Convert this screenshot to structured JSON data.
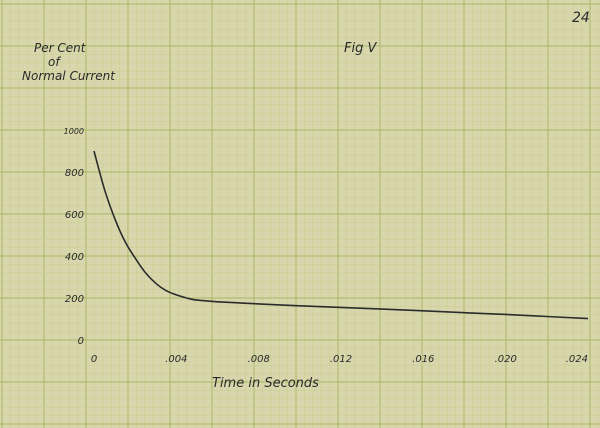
{
  "page": {
    "page_number": "24",
    "figure_label": "Fig V"
  },
  "chart_data": {
    "type": "line",
    "title": "Fig V",
    "ylabel_lines": [
      "Per Cent",
      "of",
      "Normal Current"
    ],
    "xlabel": "Time in Seconds",
    "x_ticks": [
      {
        "value": 0,
        "label": "0"
      },
      {
        "value": 0.004,
        "label": ".004"
      },
      {
        "value": 0.008,
        "label": ".008"
      },
      {
        "value": 0.012,
        "label": ".012"
      },
      {
        "value": 0.016,
        "label": ".016"
      },
      {
        "value": 0.02,
        "label": ".020"
      },
      {
        "value": 0.024,
        "label": ".024"
      }
    ],
    "y_ticks": [
      {
        "value": 0,
        "label": "0"
      },
      {
        "value": 200,
        "label": "200"
      },
      {
        "value": 400,
        "label": "400"
      },
      {
        "value": 600,
        "label": "600"
      },
      {
        "value": 800,
        "label": "800"
      },
      {
        "value": 1000,
        "label": "1000"
      }
    ],
    "xlim": [
      0,
      0.024
    ],
    "ylim": [
      0,
      1000
    ],
    "grid": true,
    "series": [
      {
        "x": [
          0,
          0.0005,
          0.001,
          0.0015,
          0.002,
          0.0025,
          0.003,
          0.0035,
          0.004,
          0.0045,
          0.005,
          0.006,
          0.007,
          0.008,
          0.01,
          0.012,
          0.014,
          0.016,
          0.018,
          0.02,
          0.022,
          0.024
        ],
        "y": [
          900,
          720,
          580,
          470,
          390,
          320,
          270,
          235,
          215,
          200,
          190,
          182,
          177,
          172,
          163,
          155,
          147,
          139,
          130,
          122,
          112,
          102
        ]
      }
    ],
    "colors": {
      "line": "#2b2b2b",
      "grid_minor": "#c9d08e",
      "grid_major": "#a8b864",
      "paper": "#d9d6ae"
    }
  }
}
